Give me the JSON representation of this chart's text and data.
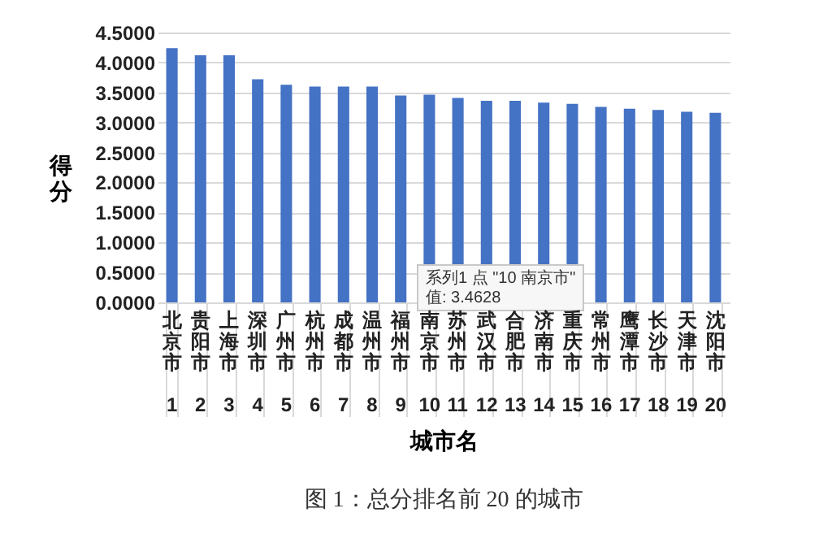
{
  "chart_data": {
    "type": "bar",
    "title": "图 1：总分排名前 20 的城市",
    "xlabel": "城市名",
    "ylabel": "得分",
    "categories": [
      "北京市 1",
      "贵阳市 2",
      "上海市 3",
      "深圳市 4",
      "广州市 5",
      "杭州市 6",
      "成都市 7",
      "温州市 8",
      "福州市 9",
      "南京市 10",
      "苏州市 11",
      "武汉市 12",
      "合肥市 13",
      "济南市 14",
      "重庆市 15",
      "常州市 16",
      "鹰潭市 17",
      "长沙市 18",
      "天津市 19",
      "沈阳市 20"
    ],
    "values": [
      4.24,
      4.12,
      4.12,
      3.72,
      3.63,
      3.6,
      3.6,
      3.6,
      3.45,
      3.4628,
      3.41,
      3.36,
      3.36,
      3.33,
      3.31,
      3.26,
      3.23,
      3.21,
      3.18,
      3.16
    ],
    "color": "#4472c4",
    "ylim": [
      0,
      4.5
    ],
    "yticks": [
      {
        "value": 0,
        "label": "0.0000"
      },
      {
        "value": 0.5,
        "label": "0.5000"
      },
      {
        "value": 1,
        "label": "1.0000"
      },
      {
        "value": 1.5,
        "label": "1.5000"
      },
      {
        "value": 2,
        "label": "2.0000"
      },
      {
        "value": 2.5,
        "label": "2.5000"
      },
      {
        "value": 3,
        "label": "3.0000"
      },
      {
        "value": 3.5,
        "label": "3.5000"
      },
      {
        "value": 4,
        "label": "4.0000"
      },
      {
        "value": 4.5,
        "label": "4.5000"
      }
    ],
    "grid": "y",
    "annotations": [
      "系列1 点 \"10 南京市\"\n值: 3.4628"
    ]
  }
}
